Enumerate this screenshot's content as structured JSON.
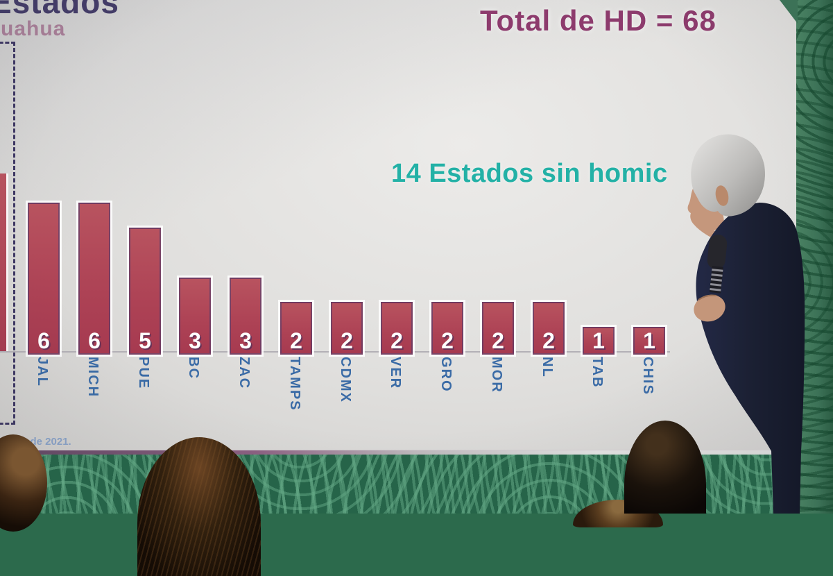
{
  "chart_data": {
    "type": "bar",
    "title_fragment": "Estados",
    "subtitle_fragment": "uahua",
    "total_annotation": "Total de HD = 68",
    "note_annotation": "14 Estados sin homic",
    "footnote_fragment": "bre de 2021.",
    "categories": [
      "JAL",
      "MICH",
      "PUE",
      "BC",
      "ZAC",
      "TAMPS",
      "CDMX",
      "VER",
      "GRO",
      "MOR",
      "NL",
      "TAB",
      "CHIS"
    ],
    "values": [
      6,
      6,
      5,
      3,
      3,
      2,
      2,
      2,
      2,
      2,
      2,
      1,
      1
    ],
    "partial_bar_at_left_edge": {
      "visible": true,
      "estimated_value": 7,
      "highlighted_with_dash_box": true
    },
    "legend": "none",
    "grid": "off",
    "colors": {
      "bar": "#b04a5c",
      "bar_value_label": "#ffffff",
      "category_label": "#3a6ba6",
      "title": "#433c68",
      "subtitle": "#a77e97",
      "total_annotation": "#8d3b6d",
      "note_annotation": "#23b1a6",
      "footnote": "#8aa3c8",
      "dash_highlight_box": "#3d3763",
      "wall_green": "#2c6a4c"
    }
  }
}
